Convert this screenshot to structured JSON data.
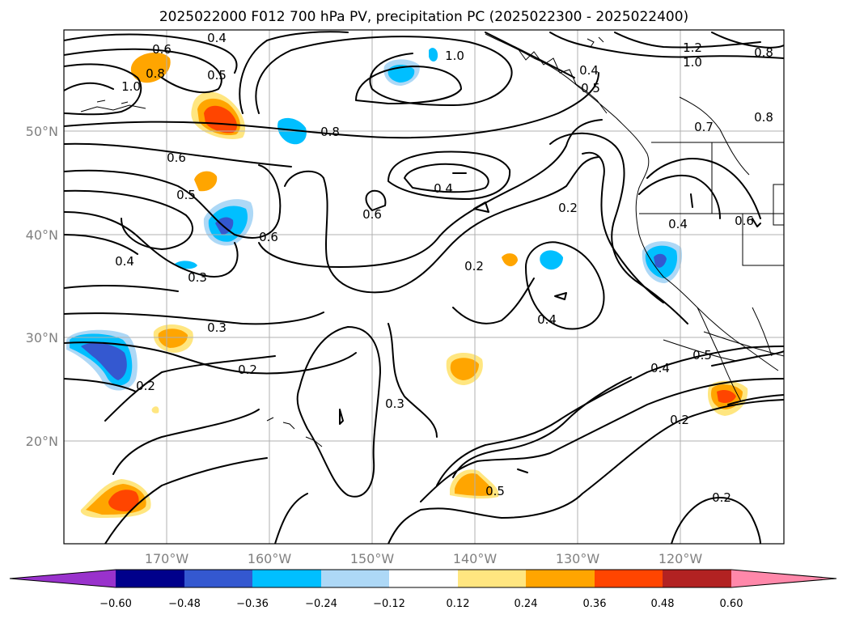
{
  "title": "2025022000 F012 700 hPa PV, precipitation PC (2025022300 - 2025022400)",
  "lat_labels": [
    "50°N",
    "40°N",
    "30°N",
    "20°N"
  ],
  "lon_labels": [
    "170°W",
    "160°W",
    "150°W",
    "140°W",
    "130°W",
    "120°W"
  ],
  "colorbar": {
    "ticks": [
      "−0.60",
      "−0.48",
      "−0.36",
      "−0.24",
      "−0.12",
      "0.12",
      "0.24",
      "0.36",
      "0.48",
      "0.60"
    ],
    "colors": [
      "#9932cc",
      "#00008b",
      "#3458d0",
      "#00bfff",
      "#add8f6",
      "#ffffff",
      "#ffe680",
      "#ffa500",
      "#ff4500",
      "#b22222",
      "#ff88aa"
    ]
  },
  "contour_labels": {
    "c1": "0.4",
    "c2": "0.6",
    "c3": "0.8",
    "c4": "0.5",
    "c5": "1.0",
    "c6": "1.0",
    "c7": "0.4",
    "c8": "0.5",
    "c9": "1.2",
    "c10": "1.0",
    "c11": "0.8",
    "c12": "0.8",
    "c13": "0.8",
    "c14": "0.6",
    "c15": "0.5",
    "c16": "0.4",
    "c17": "0.6",
    "c18": "0.6",
    "c19": "0.2",
    "c20": "0.4",
    "c21": "0.3",
    "c22": "0.4",
    "c23": "0.6",
    "c24": "0.2",
    "c25": "0.3",
    "c26": "0.2",
    "c27": "0.2",
    "c28": "0.4",
    "c29": "0.3",
    "c30": "0.4",
    "c31": "0.5",
    "c32": "0.2",
    "c33": "0.5",
    "c34": "0.2",
    "c35": "0.7"
  }
}
